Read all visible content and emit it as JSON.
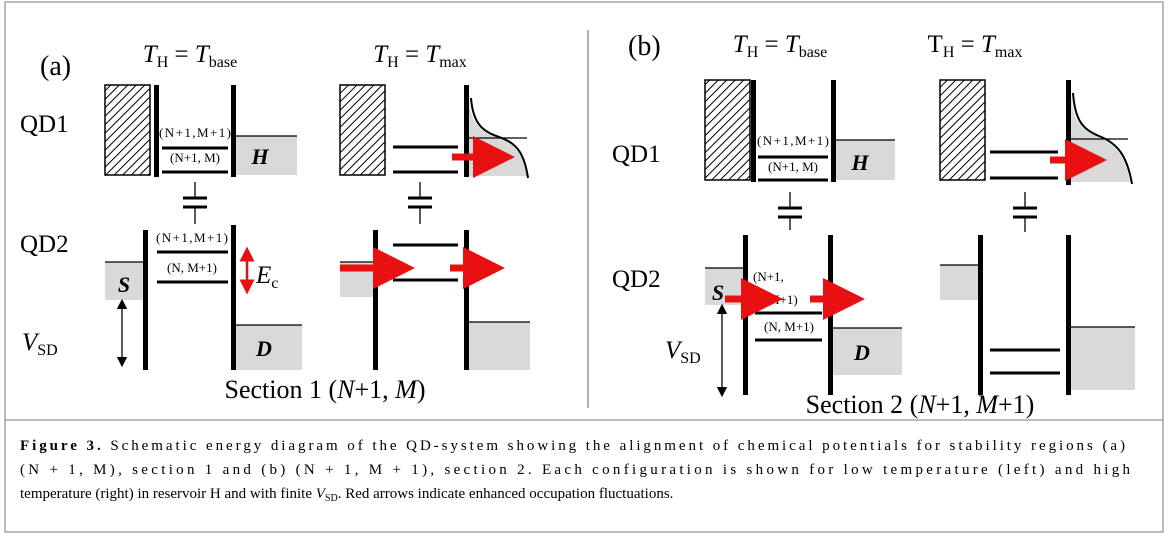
{
  "panels": [
    {
      "label": "(a)",
      "header_left": [
        "T",
        "H",
        " = ",
        "T",
        "base"
      ],
      "header_right": [
        "T",
        "H",
        " = ",
        "T",
        "max"
      ],
      "qd1": "QD1",
      "qd2": "QD2",
      "levels": [
        "(N+1,M+1)",
        "(N+1, M)",
        "(N+1,M+1)",
        "(N, M+1)"
      ],
      "reservoirs": {
        "H": "H",
        "S": "S",
        "D": "D"
      },
      "ec": [
        "E",
        "c"
      ],
      "vsd": [
        "V",
        "SD"
      ],
      "section": [
        "Section 1 (",
        "N",
        "+1, ",
        "M",
        ")"
      ]
    },
    {
      "label": "(b)",
      "header_left": [
        "T",
        "H",
        " = ",
        "T",
        "base"
      ],
      "header_right": [
        "T",
        "H",
        " = ",
        "T",
        "max"
      ],
      "qd1": "QD1",
      "qd2": "QD2",
      "levels": [
        "(N+1,M+1)",
        "(N+1, M)",
        "(N+1,",
        "M+1)",
        "(N, M+1)"
      ],
      "reservoirs": {
        "H": "H",
        "S": "S",
        "D": "D"
      },
      "vsd": [
        "V",
        "SD"
      ],
      "section": [
        "Section 2 (",
        "N",
        "+1, ",
        "M",
        "+1)"
      ]
    }
  ],
  "caption": {
    "label": "Figure 3.",
    "lines": [
      " Schematic energy diagram of the QD-system showing the alignment of chemical potentials for stability regions (a)",
      "(N + 1, M), section 1 and (b) (N + 1, M + 1), section 2. Each configuration is shown for low temperature (left) and high",
      [
        "temperature (right) in reservoir H and with finite ",
        "V",
        "SD",
        ". Red arrows indicate enhanced occupation fluctuations."
      ]
    ]
  }
}
